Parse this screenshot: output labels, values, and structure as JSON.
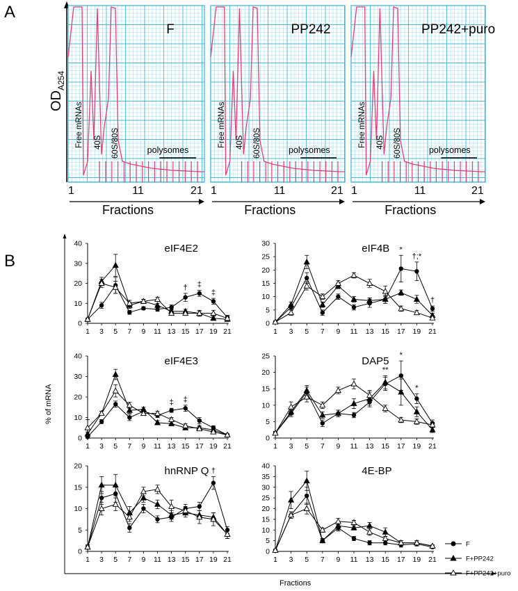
{
  "panel_a": {
    "letter": "A",
    "y_label": "OD",
    "y_label_sub": "A254",
    "x_label": "Fractions",
    "x_ticks": [
      "1",
      "11",
      "21"
    ],
    "peak_labels": {
      "free": "Free mRNAs",
      "s40": "40S",
      "s60_80": "60S/80S",
      "polysomes": "polysomes"
    },
    "profiles": [
      {
        "title": "F"
      },
      {
        "title": "PP242"
      },
      {
        "title": "PP242+puro"
      }
    ],
    "colors": {
      "grid": "#35b3d3",
      "trace": "#e0407a"
    }
  },
  "panel_b": {
    "letter": "B",
    "y_label": "% of mRNA",
    "x_label": "Fractions",
    "legend": [
      "F",
      "F+PP242",
      "F+PP242+puro"
    ]
  },
  "chart_data": [
    {
      "type": "line",
      "title": "eIF4E2",
      "x": [
        1,
        3,
        5,
        7,
        9,
        11,
        13,
        15,
        17,
        19,
        21
      ],
      "ylim": [
        0,
        40
      ],
      "yticks": [
        0,
        10,
        20,
        30,
        40
      ],
      "series": [
        {
          "name": "F",
          "values": [
            2,
            9,
            19,
            5.5,
            7.5,
            7,
            8,
            13,
            15,
            11,
            3
          ],
          "errors": [
            0.5,
            1.5,
            4,
            1,
            0.8,
            1,
            1.2,
            2,
            1.5,
            1.5,
            1
          ]
        },
        {
          "name": "F+PP242",
          "values": [
            2,
            21,
            29,
            9,
            11,
            9,
            6,
            6,
            5,
            2.5,
            2
          ],
          "errors": [
            0.5,
            2,
            5.5,
            1.5,
            1,
            1,
            1,
            1,
            1.5,
            1,
            0.5
          ]
        },
        {
          "name": "F+PP242+puro",
          "values": [
            2,
            20,
            18,
            10,
            11,
            12,
            5,
            5,
            5,
            5,
            2.5
          ],
          "errors": [
            0.5,
            2,
            3,
            1.5,
            1,
            1,
            1,
            1,
            1,
            1.5,
            0.8
          ]
        }
      ],
      "annotations": [
        {
          "x": 15,
          "text": "†"
        },
        {
          "x": 17,
          "text": "‡"
        },
        {
          "x": 19,
          "text": "‡"
        }
      ]
    },
    {
      "type": "line",
      "title": "eIF4B",
      "x": [
        1,
        3,
        5,
        7,
        9,
        11,
        13,
        15,
        17,
        19,
        21
      ],
      "ylim": [
        0,
        30
      ],
      "yticks": [
        0,
        5,
        10,
        15,
        20,
        25,
        30
      ],
      "series": [
        {
          "name": "F",
          "values": [
            0.5,
            6,
            17,
            4,
            10,
            6,
            7.5,
            9,
            20.5,
            19.5,
            5.5
          ],
          "errors": [
            0.3,
            1,
            2,
            1,
            1,
            1,
            1.5,
            1.5,
            5,
            3.5,
            1
          ]
        },
        {
          "name": "F+PP242",
          "values": [
            0.5,
            7,
            23,
            7,
            14,
            9,
            8.5,
            9,
            11.5,
            9,
            3
          ],
          "errors": [
            0.3,
            1,
            2.5,
            1,
            1,
            1,
            1,
            1.5,
            1,
            1.5,
            0.8
          ]
        },
        {
          "name": "F+PP242+puro",
          "values": [
            0.5,
            4,
            14,
            10,
            15,
            18,
            15,
            12,
            5.5,
            4,
            2
          ],
          "errors": [
            0.3,
            1,
            1.5,
            1,
            1,
            1,
            1.5,
            2,
            1,
            0.8,
            0.5
          ]
        }
      ],
      "annotations": [
        {
          "x": 17,
          "text": "*"
        },
        {
          "x": 19,
          "text": "†;*"
        },
        {
          "x": 21,
          "text": "†"
        }
      ]
    },
    {
      "type": "line",
      "title": "eIF4E3",
      "x": [
        1,
        3,
        5,
        7,
        9,
        11,
        13,
        15,
        17,
        19,
        21
      ],
      "ylim": [
        0,
        40
      ],
      "yticks": [
        0,
        10,
        20,
        30,
        40
      ],
      "series": [
        {
          "name": "F",
          "values": [
            0.5,
            8,
            16.5,
            10,
            13,
            11,
            13.5,
            14.5,
            8.5,
            5,
            1.5
          ],
          "errors": [
            0.5,
            1,
            1.5,
            1.5,
            1,
            1,
            1,
            1.5,
            1.5,
            1,
            0.5
          ]
        },
        {
          "name": "F+PP242",
          "values": [
            2,
            12,
            31,
            13.5,
            14,
            7.5,
            7,
            5,
            5,
            4,
            1.5
          ],
          "errors": [
            1,
            1,
            2.5,
            1.5,
            1,
            1,
            1,
            1,
            1,
            1,
            0.5
          ]
        },
        {
          "name": "F+PP242+puro",
          "values": [
            5,
            12,
            23,
            16,
            12,
            12,
            9,
            6,
            4.5,
            3,
            1.5
          ],
          "errors": [
            4,
            1,
            3,
            1.5,
            1,
            1,
            1,
            1,
            1,
            1,
            0.5
          ]
        }
      ],
      "annotations": [
        {
          "x": 13,
          "text": "‡"
        },
        {
          "x": 15,
          "text": "‡"
        }
      ]
    },
    {
      "type": "line",
      "title": "DAP5",
      "x": [
        1,
        3,
        5,
        7,
        9,
        11,
        13,
        15,
        17,
        19,
        21
      ],
      "ylim": [
        0,
        25
      ],
      "yticks": [
        0,
        5,
        10,
        15,
        20,
        25
      ],
      "series": [
        {
          "name": "F",
          "values": [
            1.5,
            7.5,
            14,
            4.5,
            7.5,
            7,
            11,
            16.5,
            19,
            12,
            4.5
          ],
          "errors": [
            0.5,
            1,
            1.5,
            1,
            1,
            0.8,
            1.5,
            2,
            4.5,
            1.5,
            1
          ]
        },
        {
          "name": "F+PP242",
          "values": [
            1.5,
            8,
            14.5,
            7,
            7.5,
            10.5,
            12,
            17,
            14,
            8,
            2.5
          ],
          "errors": [
            0.5,
            1,
            1.5,
            1,
            1,
            1.5,
            2,
            2,
            4,
            1.5,
            0.8
          ]
        },
        {
          "name": "F+PP242+puro",
          "values": [
            1.5,
            9.5,
            12.5,
            10,
            14.5,
            16.5,
            13,
            9,
            5.5,
            5,
            4
          ],
          "errors": [
            0.5,
            1.5,
            1.5,
            1,
            1,
            1.5,
            1.5,
            1,
            0.8,
            0.8,
            0.8
          ]
        }
      ],
      "annotations": [
        {
          "x": 15,
          "text": "**"
        },
        {
          "x": 17,
          "text": "*"
        },
        {
          "x": 19,
          "text": "*"
        }
      ]
    },
    {
      "type": "line",
      "title": "hnRNP Q",
      "x": [
        1,
        3,
        5,
        7,
        9,
        11,
        13,
        15,
        17,
        19,
        21
      ],
      "ylim": [
        0,
        20
      ],
      "yticks": [
        0,
        5,
        10,
        15,
        20
      ],
      "series": [
        {
          "name": "F",
          "values": [
            1,
            12.5,
            13.5,
            5.5,
            10,
            7.5,
            8,
            10,
            10.5,
            16,
            5
          ],
          "errors": [
            0.5,
            1.5,
            2,
            1,
            1,
            0.8,
            1,
            1,
            1,
            1.5,
            0.8
          ]
        },
        {
          "name": "F+PP242",
          "values": [
            1,
            15.5,
            15.5,
            9,
            12.5,
            11,
            8.5,
            9,
            8.5,
            8,
            4
          ],
          "errors": [
            0.5,
            2,
            2.5,
            1.5,
            1,
            1,
            1,
            1,
            1,
            1,
            1
          ]
        },
        {
          "name": "F+PP242+puro",
          "values": [
            1,
            10,
            11,
            8,
            14,
            14.5,
            10.5,
            9.5,
            8,
            7.5,
            4
          ],
          "errors": [
            0.5,
            1.5,
            1.5,
            1,
            1,
            1,
            1.5,
            1,
            1.5,
            1.5,
            1
          ]
        }
      ],
      "annotations": [
        {
          "x": 19,
          "text": "†"
        }
      ]
    },
    {
      "type": "line",
      "title": "4E-BP",
      "x": [
        1,
        3,
        5,
        7,
        9,
        11,
        13,
        15,
        17,
        19,
        21
      ],
      "ylim": [
        0,
        40
      ],
      "yticks": [
        0,
        5,
        10,
        15,
        20,
        25,
        30,
        35,
        40
      ],
      "series": [
        {
          "name": "F",
          "values": [
            0.5,
            17,
            26,
            5,
            11,
            6,
            4,
            4,
            3,
            3.5,
            2
          ],
          "errors": [
            0.5,
            1.5,
            4,
            1,
            1.5,
            1,
            1,
            1,
            1,
            1,
            0.5
          ]
        },
        {
          "name": "F+PP242",
          "values": [
            0.5,
            24,
            33,
            5,
            12,
            11,
            12,
            9,
            4,
            4,
            2.5
          ],
          "errors": [
            0.5,
            4,
            4.5,
            1,
            2,
            1,
            1.5,
            2,
            1,
            1,
            0.5
          ]
        },
        {
          "name": "F+PP242+puro",
          "values": [
            0.5,
            17,
            20,
            10,
            14,
            13.5,
            9,
            6,
            4,
            4,
            2.5
          ],
          "errors": [
            0.5,
            1.5,
            2.5,
            1,
            1.5,
            1,
            1.5,
            1,
            1,
            1,
            0.5
          ]
        }
      ],
      "annotations": []
    }
  ]
}
